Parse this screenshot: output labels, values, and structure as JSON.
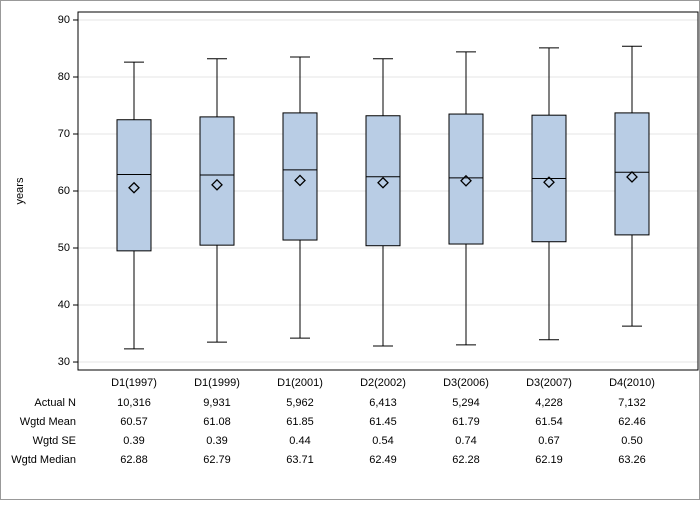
{
  "chart_data": {
    "type": "boxplot",
    "y_label": "years",
    "categories": [
      "D1(1997)",
      "D1(1999)",
      "D1(2001)",
      "D2(2002)",
      "D3(2006)",
      "D3(2007)",
      "D4(2010)"
    ],
    "boxes": [
      {
        "low": 32.3,
        "q1": 49.5,
        "median": 62.9,
        "q3": 72.5,
        "high": 82.6,
        "mean": 60.57
      },
      {
        "low": 33.5,
        "q1": 50.5,
        "median": 62.8,
        "q3": 73.0,
        "high": 83.2,
        "mean": 61.08
      },
      {
        "low": 34.2,
        "q1": 51.4,
        "median": 63.7,
        "q3": 73.7,
        "high": 83.5,
        "mean": 61.85
      },
      {
        "low": 32.8,
        "q1": 50.4,
        "median": 62.5,
        "q3": 73.2,
        "high": 83.2,
        "mean": 61.45
      },
      {
        "low": 33.0,
        "q1": 50.7,
        "median": 62.3,
        "q3": 73.5,
        "high": 84.4,
        "mean": 61.79
      },
      {
        "low": 33.9,
        "q1": 51.1,
        "median": 62.2,
        "q3": 73.3,
        "high": 85.1,
        "mean": 61.54
      },
      {
        "low": 36.3,
        "q1": 52.3,
        "median": 63.3,
        "q3": 73.7,
        "high": 85.4,
        "mean": 62.46
      }
    ],
    "color": "#b9cde5",
    "ylim": [
      28.6,
      91.4
    ],
    "yticks": [
      30,
      40,
      50,
      60,
      70,
      80,
      90
    ],
    "grid": true,
    "table": [
      {
        "label": "Actual N",
        "cells": [
          "10,316",
          "9,931",
          "5,962",
          "6,413",
          "5,294",
          "4,228",
          "7,132"
        ]
      },
      {
        "label": "Wgtd Mean",
        "cells": [
          "60.57",
          "61.08",
          "61.85",
          "61.45",
          "61.79",
          "61.54",
          "62.46"
        ]
      },
      {
        "label": "Wgtd SE",
        "cells": [
          "0.39",
          "0.39",
          "0.44",
          "0.54",
          "0.74",
          "0.67",
          "0.50"
        ]
      },
      {
        "label": "Wgtd Median",
        "cells": [
          "62.88",
          "62.79",
          "63.71",
          "62.49",
          "62.28",
          "62.19",
          "63.26"
        ]
      }
    ]
  }
}
